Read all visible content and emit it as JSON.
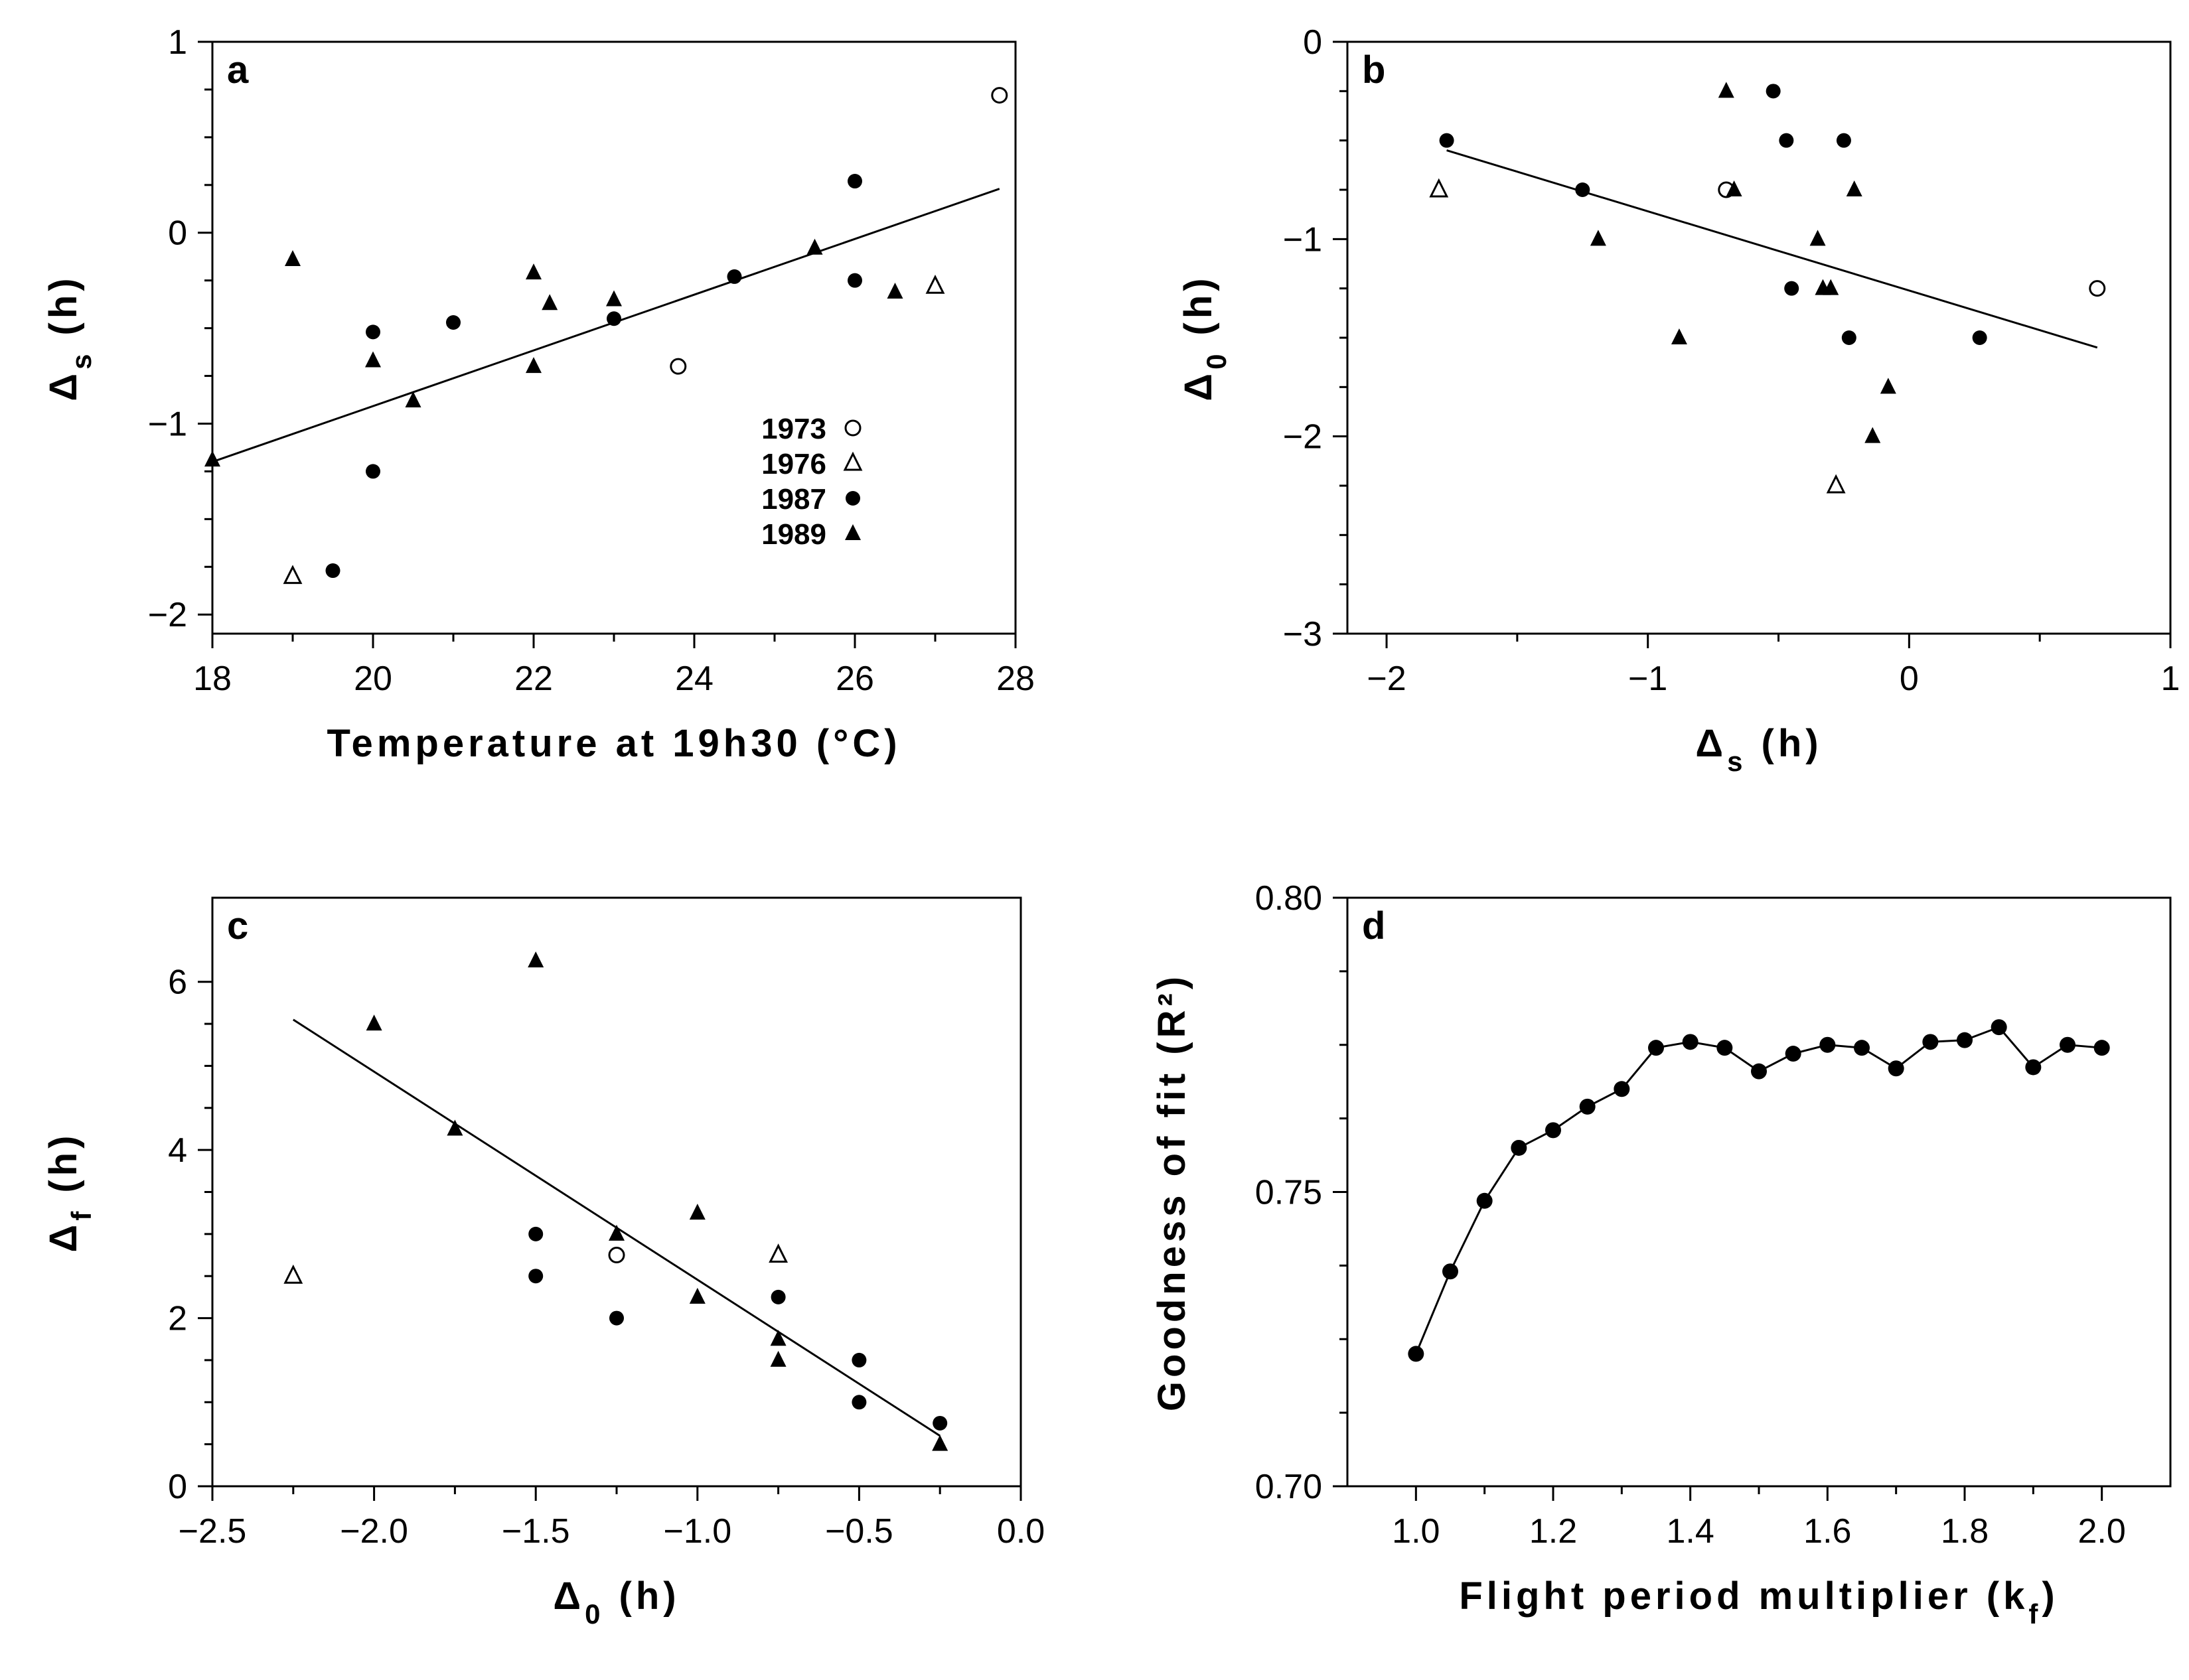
{
  "chart_data": [
    {
      "panel": "a",
      "type": "scatter",
      "xlabel": "Temperature at 19h30 (°C)",
      "ylabel_main": "Δ",
      "ylabel_sub": "s",
      "ylabel_unit": "(h)",
      "xlim": [
        18,
        28
      ],
      "ylim": [
        -2.1,
        1
      ],
      "xticks": [
        18,
        20,
        22,
        24,
        26,
        28
      ],
      "xtick_labels": [
        "18",
        "20",
        "22",
        "24",
        "26",
        "28"
      ],
      "yticks": [
        1,
        0,
        -1,
        -2
      ],
      "ytick_labels": [
        "1",
        "0",
        "−1",
        "−2"
      ],
      "fit_line": [
        [
          18,
          -1.2
        ],
        [
          27.8,
          0.23
        ]
      ],
      "legend": [
        {
          "label": "1973",
          "marker": "open-circle"
        },
        {
          "label": "1976",
          "marker": "open-triangle"
        },
        {
          "label": "1987",
          "marker": "filled-circle"
        },
        {
          "label": "1989",
          "marker": "filled-triangle"
        }
      ],
      "points": [
        {
          "x": 27.8,
          "y": 0.72,
          "m": "oc"
        },
        {
          "x": 23.8,
          "y": -0.7,
          "m": "oc"
        },
        {
          "x": 27.0,
          "y": -0.28,
          "m": "ot"
        },
        {
          "x": 19.0,
          "y": -1.8,
          "m": "ot"
        },
        {
          "x": 26.0,
          "y": 0.27,
          "m": "fc"
        },
        {
          "x": 26.0,
          "y": -0.25,
          "m": "fc"
        },
        {
          "x": 24.5,
          "y": -0.23,
          "m": "fc"
        },
        {
          "x": 23.0,
          "y": -0.45,
          "m": "fc"
        },
        {
          "x": 21.0,
          "y": -0.47,
          "m": "fc"
        },
        {
          "x": 20.0,
          "y": -0.52,
          "m": "fc"
        },
        {
          "x": 20.0,
          "y": -1.25,
          "m": "fc"
        },
        {
          "x": 19.5,
          "y": -1.77,
          "m": "fc"
        },
        {
          "x": 18.0,
          "y": -1.19,
          "m": "ft"
        },
        {
          "x": 19.0,
          "y": -0.14,
          "m": "ft"
        },
        {
          "x": 20.0,
          "y": -0.67,
          "m": "ft"
        },
        {
          "x": 20.5,
          "y": -0.88,
          "m": "ft"
        },
        {
          "x": 22.0,
          "y": -0.21,
          "m": "ft"
        },
        {
          "x": 22.0,
          "y": -0.7,
          "m": "ft"
        },
        {
          "x": 22.2,
          "y": -0.37,
          "m": "ft"
        },
        {
          "x": 23.0,
          "y": -0.35,
          "m": "ft"
        },
        {
          "x": 25.5,
          "y": -0.08,
          "m": "ft"
        },
        {
          "x": 26.5,
          "y": -0.31,
          "m": "ft"
        }
      ]
    },
    {
      "panel": "b",
      "type": "scatter",
      "xlabel_main": "Δ",
      "xlabel_sub": "s",
      "xlabel_unit": "(h)",
      "ylabel_main": "Δ",
      "ylabel_sub": "0",
      "ylabel_unit": "(h)",
      "xlim": [
        -2.15,
        1
      ],
      "ylim": [
        -3,
        0
      ],
      "xticks": [
        -2,
        -1,
        0,
        1
      ],
      "xtick_labels": [
        "−2",
        "−1",
        "0",
        "1"
      ],
      "yticks": [
        0,
        -1,
        -2,
        -3
      ],
      "ytick_labels": [
        "0",
        "−1",
        "−2",
        "−3"
      ],
      "fit_line": [
        [
          -1.77,
          -0.55
        ],
        [
          0.72,
          -1.55
        ]
      ],
      "points": [
        {
          "x": 0.72,
          "y": -1.25,
          "m": "oc"
        },
        {
          "x": -0.7,
          "y": -0.75,
          "m": "oc"
        },
        {
          "x": -1.8,
          "y": -0.75,
          "m": "ot"
        },
        {
          "x": -0.28,
          "y": -2.25,
          "m": "ot"
        },
        {
          "x": -1.77,
          "y": -0.5,
          "m": "fc"
        },
        {
          "x": -1.25,
          "y": -0.75,
          "m": "fc"
        },
        {
          "x": -0.52,
          "y": -0.25,
          "m": "fc"
        },
        {
          "x": -0.47,
          "y": -0.5,
          "m": "fc"
        },
        {
          "x": -0.25,
          "y": -0.5,
          "m": "fc"
        },
        {
          "x": -0.45,
          "y": -1.25,
          "m": "fc"
        },
        {
          "x": -0.23,
          "y": -1.5,
          "m": "fc"
        },
        {
          "x": 0.27,
          "y": -1.5,
          "m": "fc"
        },
        {
          "x": -0.7,
          "y": -0.25,
          "m": "ft"
        },
        {
          "x": -0.67,
          "y": -0.75,
          "m": "ft"
        },
        {
          "x": -0.21,
          "y": -0.75,
          "m": "ft"
        },
        {
          "x": -1.19,
          "y": -1.0,
          "m": "ft"
        },
        {
          "x": -0.35,
          "y": -1.0,
          "m": "ft"
        },
        {
          "x": -0.33,
          "y": -1.25,
          "m": "ft"
        },
        {
          "x": -0.3,
          "y": -1.25,
          "m": "ft"
        },
        {
          "x": -0.88,
          "y": -1.5,
          "m": "ft"
        },
        {
          "x": -0.08,
          "y": -1.75,
          "m": "ft"
        },
        {
          "x": -0.14,
          "y": -2.0,
          "m": "ft"
        }
      ]
    },
    {
      "panel": "c",
      "type": "scatter",
      "xlabel_main": "Δ",
      "xlabel_sub": "0",
      "xlabel_unit": "(h)",
      "ylabel_main": "Δ",
      "ylabel_sub": "f",
      "ylabel_unit": "(h)",
      "xlim": [
        -2.5,
        0
      ],
      "ylim": [
        0,
        7
      ],
      "xticks": [
        -2.5,
        -2.0,
        -1.5,
        -1.0,
        -0.5,
        0.0
      ],
      "xtick_labels": [
        "−2.5",
        "−2.0",
        "−1.5",
        "−1.0",
        "−0.5",
        "0.0"
      ],
      "yticks": [
        0,
        2,
        4,
        6
      ],
      "ytick_labels": [
        "0",
        "2",
        "4",
        "6"
      ],
      "fit_line": [
        [
          -2.25,
          5.55
        ],
        [
          -0.25,
          0.6
        ]
      ],
      "points": [
        {
          "x": -1.25,
          "y": 2.75,
          "m": "oc"
        },
        {
          "x": -2.25,
          "y": 2.5,
          "m": "ot"
        },
        {
          "x": -0.75,
          "y": 2.75,
          "m": "ot"
        },
        {
          "x": -1.5,
          "y": 3.0,
          "m": "fc"
        },
        {
          "x": -1.5,
          "y": 2.5,
          "m": "fc"
        },
        {
          "x": -1.25,
          "y": 2.0,
          "m": "fc"
        },
        {
          "x": -0.75,
          "y": 2.25,
          "m": "fc"
        },
        {
          "x": -0.5,
          "y": 1.5,
          "m": "fc"
        },
        {
          "x": -0.5,
          "y": 1.0,
          "m": "fc"
        },
        {
          "x": -0.25,
          "y": 0.75,
          "m": "fc"
        },
        {
          "x": -1.5,
          "y": 6.25,
          "m": "ft"
        },
        {
          "x": -2.0,
          "y": 5.5,
          "m": "ft"
        },
        {
          "x": -1.75,
          "y": 4.25,
          "m": "ft"
        },
        {
          "x": -1.25,
          "y": 3.0,
          "m": "ft"
        },
        {
          "x": -1.0,
          "y": 3.25,
          "m": "ft"
        },
        {
          "x": -1.0,
          "y": 2.25,
          "m": "ft"
        },
        {
          "x": -0.75,
          "y": 1.75,
          "m": "ft"
        },
        {
          "x": -0.75,
          "y": 1.5,
          "m": "ft"
        },
        {
          "x": -0.25,
          "y": 0.5,
          "m": "ft"
        }
      ]
    },
    {
      "panel": "d",
      "type": "line",
      "xlabel_main": "Flight period multiplier (k",
      "xlabel_sub": "f",
      "xlabel_end": ")",
      "ylabel": "Goodness of fit (R²)",
      "xlim": [
        0.9,
        2.1
      ],
      "ylim": [
        0.7,
        0.8
      ],
      "xticks": [
        1.0,
        1.2,
        1.4,
        1.6,
        1.8,
        2.0
      ],
      "xtick_labels": [
        "1.0",
        "1.2",
        "1.4",
        "1.6",
        "1.8",
        "2.0"
      ],
      "yticks": [
        0.8,
        0.75,
        0.7
      ],
      "ytick_labels": [
        "0.80",
        "0.75",
        "0.70"
      ],
      "x": [
        1.0,
        1.05,
        1.1,
        1.15,
        1.2,
        1.25,
        1.3,
        1.35,
        1.4,
        1.45,
        1.5,
        1.55,
        1.6,
        1.65,
        1.7,
        1.75,
        1.8,
        1.85,
        1.9,
        1.95,
        2.0
      ],
      "y": [
        0.7225,
        0.7365,
        0.7485,
        0.7575,
        0.7605,
        0.7645,
        0.7675,
        0.7745,
        0.7755,
        0.7745,
        0.7705,
        0.7735,
        0.775,
        0.7745,
        0.771,
        0.7755,
        0.7758,
        0.778,
        0.7712,
        0.775,
        0.7745
      ]
    }
  ]
}
